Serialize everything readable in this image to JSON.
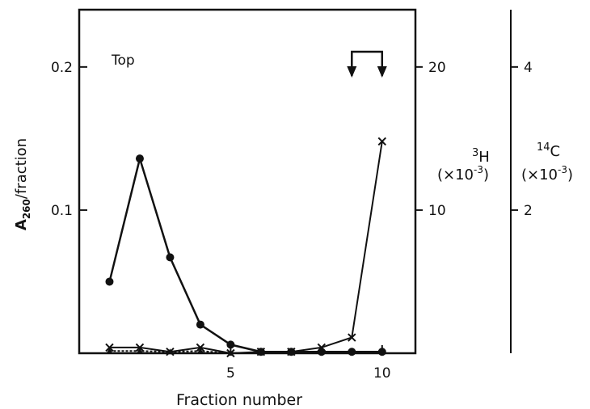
{
  "chart_data": {
    "type": "line",
    "title": "",
    "annotation": "Top",
    "xlabel": "Fraction number",
    "ylabel": "A260/fraction",
    "ylabel_main": "A",
    "ylabel_sub": "260",
    "ylabel_rest": "/fraction",
    "xlim": [
      0,
      11.1
    ],
    "ylim": [
      0,
      0.24
    ],
    "xticks": [
      5,
      10
    ],
    "yticks": [
      0.1,
      0.2
    ],
    "x_tick_labels": [
      "5",
      "10"
    ],
    "y_tick_labels": [
      "0.1",
      "0.2"
    ],
    "right_axes": [
      {
        "name": "3H",
        "label_super": "3",
        "label_main": "H",
        "label_scale": "(×10",
        "label_exp": "-3",
        "label_close": ")",
        "ylim": [
          0,
          24
        ],
        "ticks": [
          10,
          20
        ],
        "tick_labels": [
          "10",
          "20"
        ]
      },
      {
        "name": "14C",
        "label_super": "14",
        "label_main": "C",
        "label_scale": "(×10",
        "label_exp": "-3",
        "label_close": ")",
        "ylim": [
          0,
          4.8
        ],
        "ticks": [
          2,
          4
        ],
        "tick_labels": [
          "2",
          "4"
        ]
      }
    ],
    "series": [
      {
        "marker": "circle",
        "axis": "left",
        "x": [
          1,
          2,
          3,
          4,
          5,
          6,
          7,
          8,
          9,
          10
        ],
        "values": [
          0.05,
          0.136,
          0.067,
          0.02,
          0.006,
          0.001,
          0.001,
          0.001,
          0.001,
          0.001
        ]
      },
      {
        "marker": "cross",
        "axis": "3H",
        "x": [
          1,
          2,
          3,
          4,
          5,
          6,
          7,
          8,
          9,
          10
        ],
        "values": [
          0.4,
          0.4,
          0.1,
          0.4,
          0.0,
          0.1,
          0.1,
          0.4,
          1.1,
          14.8
        ]
      },
      {
        "marker": "triangle",
        "axis": "14C",
        "x": [
          1,
          2,
          3,
          4,
          5,
          6,
          7,
          8,
          9,
          10
        ],
        "values": [
          0.03,
          0.03,
          0.02,
          0.03,
          0.0,
          0.01,
          0.01,
          0.02,
          0.02,
          0.02
        ]
      }
    ],
    "arrow_fractions": [
      9,
      10
    ]
  }
}
